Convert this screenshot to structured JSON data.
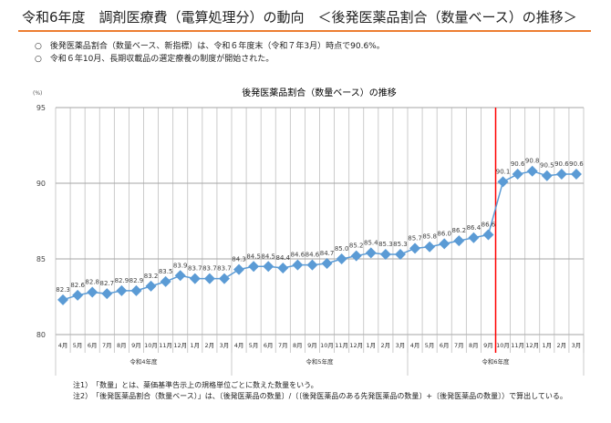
{
  "header": {
    "title": "令和6年度　調剤医療費（電算処理分）の動向　＜後発医薬品割合（数量ベース）の推移＞"
  },
  "bullets": [
    "○　後発医薬品割合（数量ベース、新指標）は、令和６年度末（令和７年3月）時点で90.6%。",
    "○　令和６年10月、長期収載品の選定療養の制度が開始された。"
  ],
  "notes": [
    "注1）　「数量」とは、薬価基準告示上の規格単位ごとに数えた数量をいう。",
    "注2）　「後発医薬品割合（数量ベース）」は、〔後発医薬品の数量〕/（〔後発医薬品のある先発医薬品の数量〕+〔後発医薬品の数量〕）で算出している。"
  ],
  "colors": {
    "accent": "#ed7d31",
    "series": "#5b9bd5",
    "marker_line": "#ff0000",
    "grid": "#bfbfbf"
  },
  "chart_data": {
    "type": "line",
    "title": "後発医薬品割合（数量ベース）の推移",
    "ylabel": "(%)",
    "ylim": [
      80,
      95
    ],
    "yticks": [
      80,
      85,
      90,
      95
    ],
    "grid": true,
    "marker": "diamond",
    "categories": [
      "4月",
      "5月",
      "6月",
      "7月",
      "8月",
      "9月",
      "10月",
      "11月",
      "12月",
      "1月",
      "2月",
      "3月",
      "4月",
      "5月",
      "6月",
      "7月",
      "8月",
      "9月",
      "10月",
      "11月",
      "12月",
      "1月",
      "2月",
      "3月",
      "4月",
      "5月",
      "6月",
      "7月",
      "8月",
      "9月",
      "10月",
      "11月",
      "12月",
      "1月",
      "2月",
      "3月"
    ],
    "fiscal_years": [
      "令和4年度",
      "令和5年度",
      "令和6年度"
    ],
    "values": [
      82.3,
      82.6,
      82.8,
      82.7,
      82.9,
      82.9,
      83.2,
      83.5,
      83.9,
      83.7,
      83.7,
      83.7,
      84.3,
      84.5,
      84.5,
      84.4,
      84.6,
      84.6,
      84.7,
      85.0,
      85.2,
      85.4,
      85.3,
      85.3,
      85.7,
      85.8,
      86.0,
      86.2,
      86.4,
      86.6,
      90.1,
      90.6,
      90.8,
      90.5,
      90.6,
      90.6
    ],
    "value_labels": [
      "82.3",
      "82.6",
      "82.8",
      "82.7",
      "82.9",
      "82.9",
      "83.2",
      "83.5",
      "83.9",
      "83.7",
      "83.7",
      "83.7",
      "84.3",
      "84.5",
      "84.5",
      "84.4",
      "84.6",
      "84.6",
      "84.7",
      "85.0",
      "85.2",
      "85.4",
      "85.3",
      "85.3",
      "85.7",
      "85.8",
      "86.0",
      "86.2",
      "86.4",
      "86.6",
      "90.1",
      "90.6",
      "90.8",
      "90.5",
      "90.6",
      "90.6"
    ],
    "vertical_marker": {
      "between": [
        "9月",
        "10月"
      ],
      "fiscal_year": "令和6年度"
    }
  }
}
